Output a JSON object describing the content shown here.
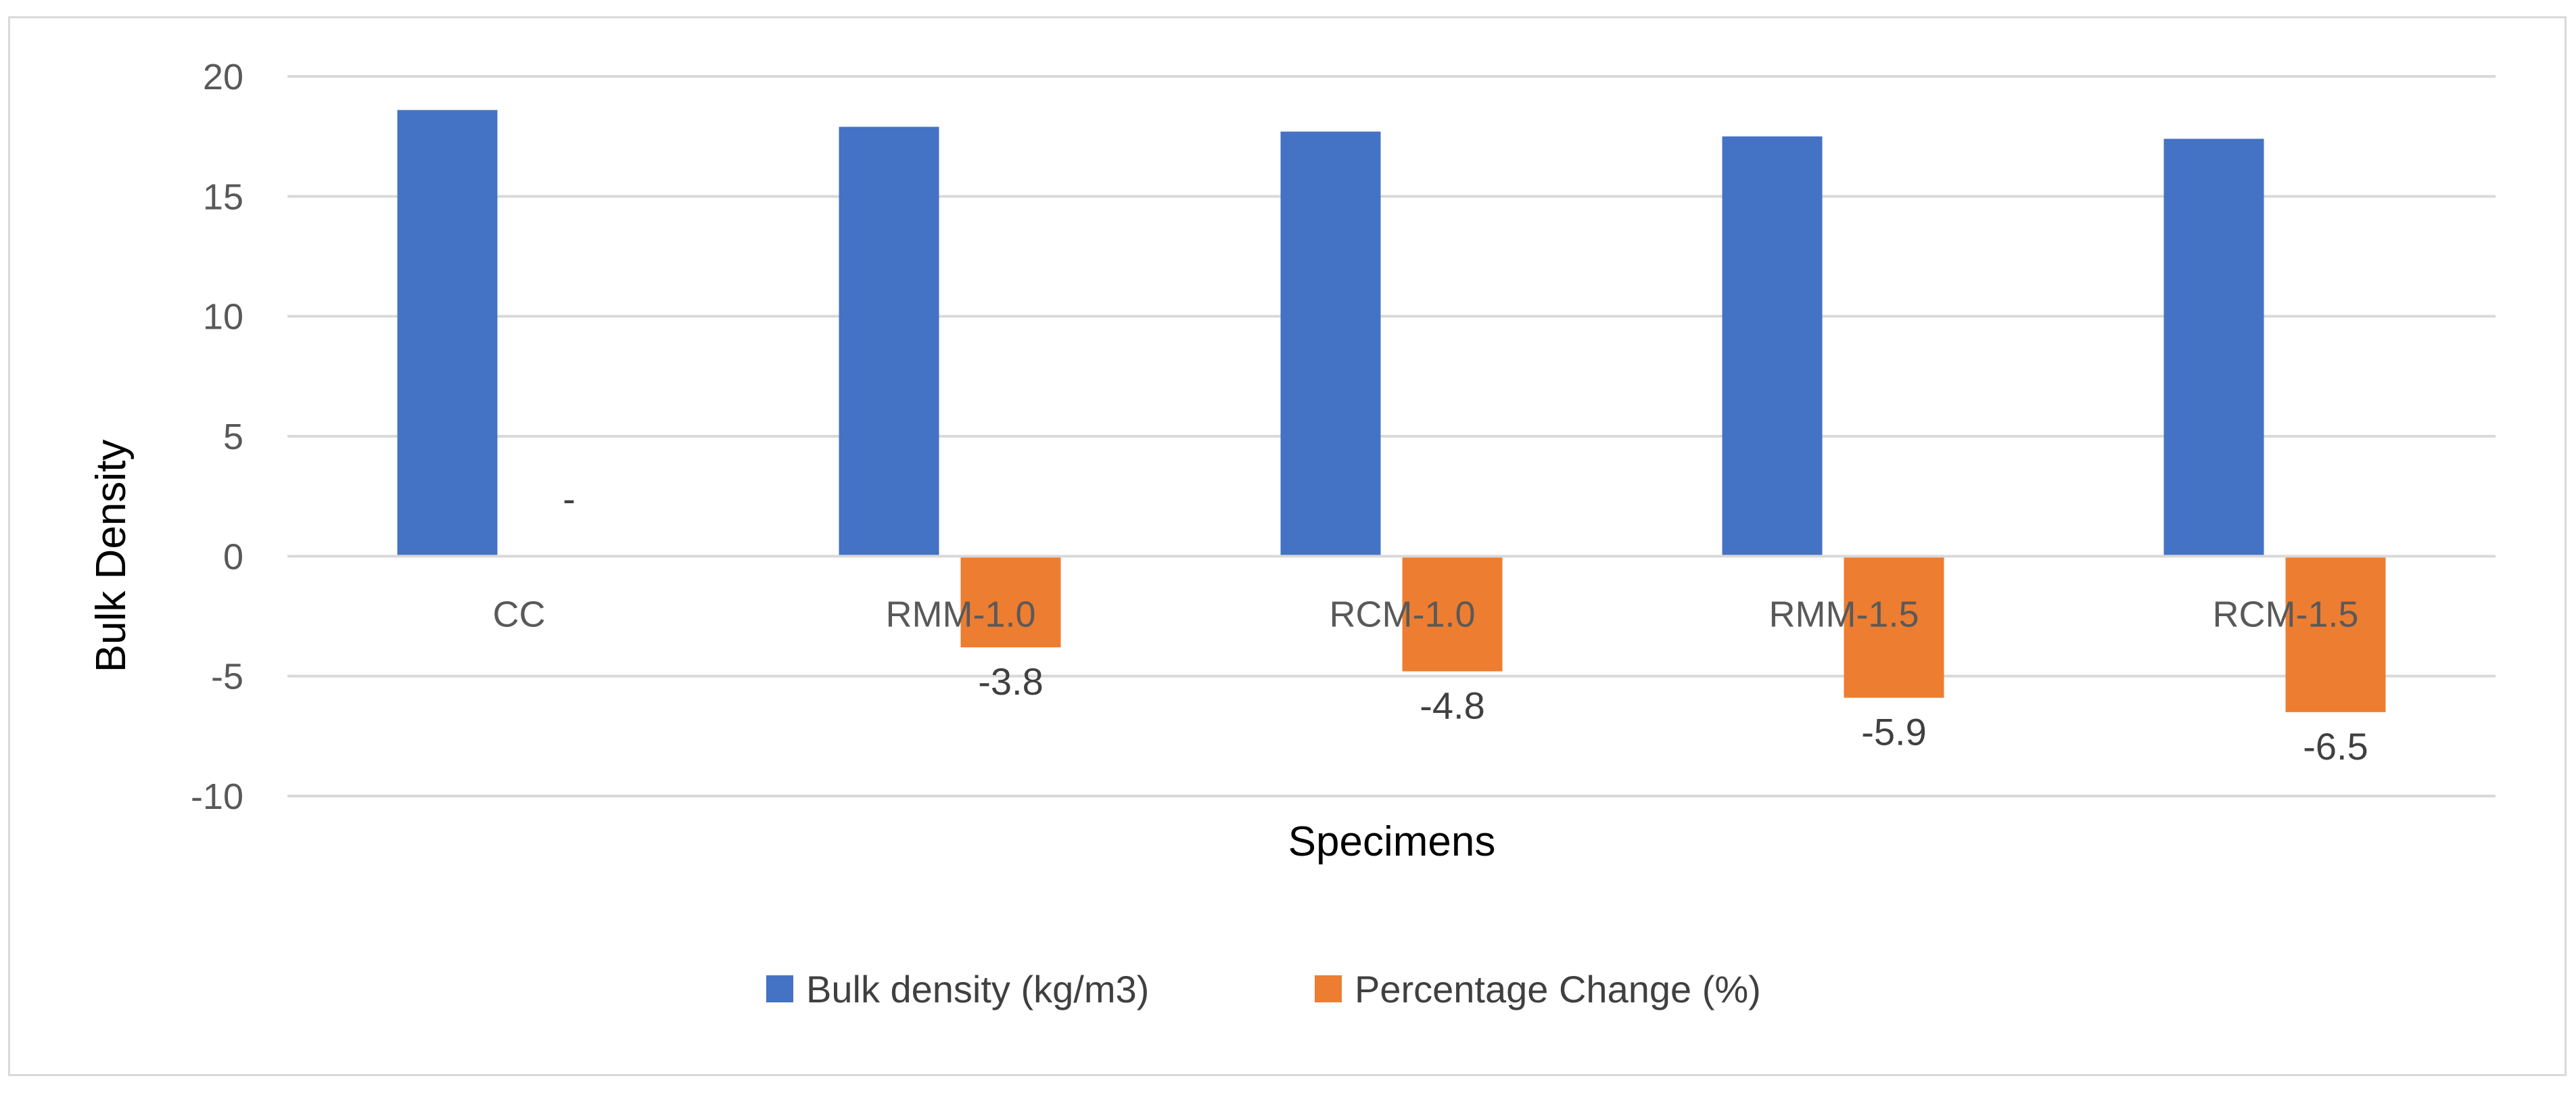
{
  "chart_data": {
    "type": "bar",
    "title": "",
    "xlabel": "Specimens",
    "ylabel": "Bulk Density",
    "ylim": [
      -10,
      20
    ],
    "yticks": [
      20,
      15,
      10,
      5,
      0,
      -5,
      -10
    ],
    "grid": true,
    "legend_position": "bottom",
    "categories": [
      "CC",
      "RMM-1.0",
      "RCM-1.0",
      "RMM-1.5",
      "RCM-1.5"
    ],
    "series": [
      {
        "name": "Bulk density (kg/m3)",
        "color": "#4472c4",
        "values": [
          18.6,
          17.9,
          17.7,
          17.5,
          17.4
        ],
        "data_labels": [
          "",
          "",
          "",
          "",
          ""
        ]
      },
      {
        "name": "Percentage Change (%)",
        "color": "#ed7d31",
        "values": [
          0,
          -3.8,
          -4.8,
          -5.9,
          -6.5
        ],
        "data_labels": [
          "-",
          "-3.8",
          "-4.8",
          "-5.9",
          "-6.5"
        ]
      }
    ]
  }
}
